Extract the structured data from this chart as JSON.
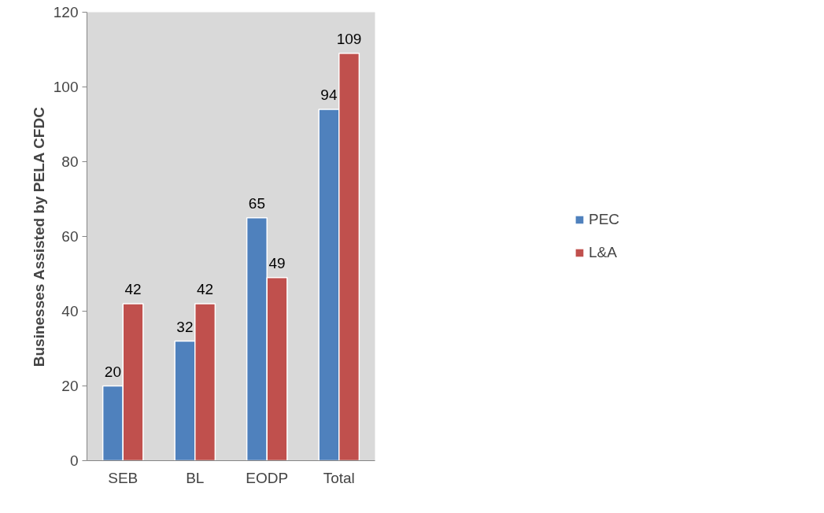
{
  "chart_data": {
    "type": "bar",
    "ylabel": "Businesses Assisted by PELA CFDC",
    "categories": [
      "SEB",
      "BL",
      "EODP",
      "Total"
    ],
    "series": [
      {
        "name": "PEC",
        "color": "#4f81bd",
        "values": [
          20,
          32,
          65,
          94
        ]
      },
      {
        "name": "L&A",
        "color": "#c0504d",
        "values": [
          42,
          42,
          49,
          109
        ]
      }
    ],
    "ylim": [
      0,
      120
    ],
    "yticks": [
      0,
      20,
      40,
      60,
      80,
      100,
      120
    ],
    "data_labels": true,
    "legend": "right",
    "grid": false
  }
}
